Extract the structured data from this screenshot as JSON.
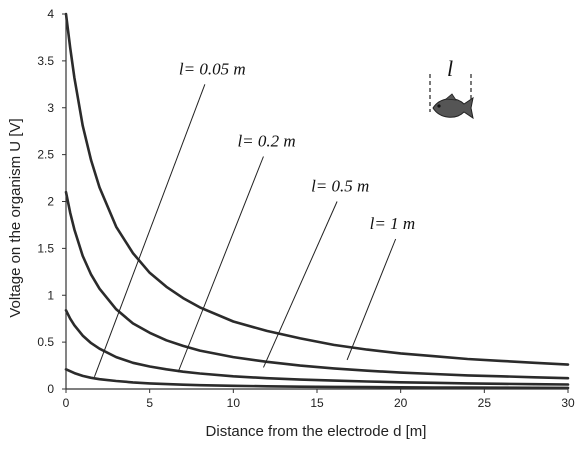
{
  "chart_data": {
    "type": "line",
    "title": "",
    "xlabel": "Distance from the electrode  d    [m]",
    "ylabel": "Voltage on the organism    U    [V]",
    "xlim": [
      0,
      30
    ],
    "ylim": [
      0,
      4
    ],
    "x_ticks": [
      0,
      5,
      10,
      15,
      20,
      25,
      30
    ],
    "y_ticks": [
      0,
      0.5,
      1,
      1.5,
      2,
      2.5,
      3,
      3.5,
      4
    ],
    "x_tick_labels": [
      "0",
      "5",
      "10",
      "15",
      "20",
      "25",
      "30"
    ],
    "y_tick_labels": [
      "0",
      "0.5",
      "1",
      "1.5",
      "2",
      "2.5",
      "3",
      "3.5",
      "4"
    ],
    "grid": false,
    "legend": "none",
    "line_color": "#2b2b2b",
    "x": [
      0,
      0.25,
      0.5,
      1,
      1.5,
      2,
      3,
      4,
      5,
      6,
      7,
      8,
      10,
      12,
      14,
      16,
      18,
      20,
      22,
      24,
      26,
      28,
      30
    ],
    "series": [
      {
        "values": [
          4.03,
          3.64,
          3.32,
          2.81,
          2.44,
          2.15,
          1.73,
          1.45,
          1.24,
          1.09,
          0.97,
          0.87,
          0.72,
          0.62,
          0.54,
          0.47,
          0.42,
          0.38,
          0.35,
          0.32,
          0.3,
          0.28,
          0.26
        ]
      },
      {
        "values": [
          2.1,
          1.88,
          1.7,
          1.42,
          1.22,
          1.07,
          0.85,
          0.7,
          0.6,
          0.52,
          0.46,
          0.41,
          0.34,
          0.29,
          0.25,
          0.22,
          0.195,
          0.175,
          0.16,
          0.145,
          0.135,
          0.125,
          0.115
        ]
      },
      {
        "values": [
          0.84,
          0.75,
          0.68,
          0.57,
          0.49,
          0.43,
          0.34,
          0.28,
          0.24,
          0.21,
          0.185,
          0.165,
          0.135,
          0.115,
          0.1,
          0.09,
          0.08,
          0.072,
          0.066,
          0.06,
          0.055,
          0.051,
          0.048
        ]
      },
      {
        "values": [
          0.21,
          0.19,
          0.17,
          0.14,
          0.12,
          0.105,
          0.085,
          0.07,
          0.06,
          0.052,
          0.046,
          0.041,
          0.034,
          0.029,
          0.025,
          0.022,
          0.02,
          0.018,
          0.016,
          0.015,
          0.014,
          0.013,
          0.012
        ]
      }
    ],
    "annotations": [
      {
        "text": "l= 0.05 m",
        "line_from": [
          1.7,
          0.13
        ],
        "line_to": [
          8.3,
          3.25
        ]
      },
      {
        "text": "l= 0.2 m",
        "line_from": [
          6.7,
          0.18
        ],
        "line_to": [
          11.8,
          2.48
        ]
      },
      {
        "text": "l= 0.5 m",
        "line_from": [
          11.8,
          0.23
        ],
        "line_to": [
          16.2,
          2.0
        ]
      },
      {
        "text": "l= 1 m",
        "line_from": [
          16.8,
          0.31
        ],
        "line_to": [
          19.7,
          1.6
        ]
      }
    ],
    "inset": {
      "label": "l",
      "icon": "fish-icon",
      "fish_color": "#555555"
    }
  }
}
